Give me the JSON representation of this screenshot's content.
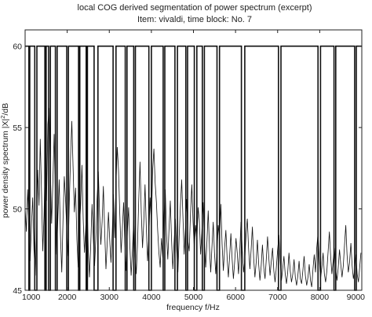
{
  "chart_data": {
    "type": "line",
    "title": "local COG derived segmentation of power spectrum (excerpt)",
    "subtitle": "Item: vivaldi, time block: No. 7",
    "xlabel": "frequency f/Hz",
    "ylabel_main": "power density spectrum |X|",
    "ylabel_sup": "2",
    "ylabel_tail": "/dB",
    "xlim": [
      1000,
      9000
    ],
    "ylim": [
      45,
      61
    ],
    "x_ticks": [
      1000,
      2000,
      3000,
      4000,
      5000,
      6000,
      7000,
      8000,
      9000
    ],
    "y_ticks": [
      45,
      50,
      55,
      60
    ],
    "x_tick_labels": [
      "1000",
      "2000",
      "3000",
      "4000",
      "5000",
      "6000",
      "7000",
      "8000",
      "9000"
    ],
    "y_tick_labels": [
      "45",
      "50",
      "55",
      "60"
    ],
    "grid": false,
    "legend": "none",
    "series": [
      {
        "role": "segmentation",
        "levels": [
          45,
          60
        ],
        "color": "#111111",
        "boundaries": [
          1000,
          1090,
          1110,
          1230,
          1280,
          1470,
          1500,
          1560,
          1600,
          1720,
          1760,
          1990,
          2030,
          2270,
          2300,
          2450,
          2480,
          2640,
          2730,
          3090,
          3160,
          3380,
          3420,
          3580,
          3620,
          3940,
          4000,
          4280,
          4320,
          4560,
          4620,
          4820,
          4860,
          5020,
          5080,
          5210,
          5260,
          5560,
          5620,
          6140,
          6220,
          7020,
          7080,
          7960,
          8020,
          8340,
          8380,
          8830,
          8870,
          9000
        ]
      },
      {
        "role": "spectrum",
        "color": "#111111",
        "x": [
          1000,
          1030,
          1060,
          1090,
          1120,
          1150,
          1180,
          1210,
          1240,
          1270,
          1300,
          1330,
          1360,
          1390,
          1420,
          1450,
          1480,
          1510,
          1540,
          1570,
          1600,
          1630,
          1660,
          1690,
          1720,
          1750,
          1780,
          1810,
          1840,
          1870,
          1900,
          1930,
          1960,
          1990,
          2020,
          2050,
          2080,
          2110,
          2140,
          2170,
          2200,
          2230,
          2260,
          2290,
          2320,
          2350,
          2380,
          2410,
          2440,
          2470,
          2500,
          2530,
          2560,
          2590,
          2620,
          2650,
          2680,
          2710,
          2740,
          2770,
          2800,
          2830,
          2860,
          2890,
          2920,
          2950,
          2980,
          3010,
          3040,
          3070,
          3100,
          3130,
          3160,
          3190,
          3220,
          3250,
          3280,
          3310,
          3340,
          3370,
          3400,
          3430,
          3460,
          3490,
          3520,
          3550,
          3580,
          3610,
          3640,
          3670,
          3700,
          3730,
          3760,
          3790,
          3820,
          3850,
          3880,
          3910,
          3940,
          3970,
          4000,
          4030,
          4060,
          4090,
          4120,
          4150,
          4180,
          4210,
          4240,
          4270,
          4300,
          4330,
          4360,
          4390,
          4420,
          4450,
          4480,
          4510,
          4540,
          4570,
          4600,
          4630,
          4660,
          4690,
          4720,
          4750,
          4780,
          4810,
          4840,
          4870,
          4900,
          4930,
          4960,
          4990,
          5020,
          5050,
          5080,
          5110,
          5140,
          5170,
          5200,
          5230,
          5260,
          5290,
          5320,
          5350,
          5380,
          5410,
          5440,
          5470,
          5500,
          5530,
          5560,
          5590,
          5620,
          5650,
          5680,
          5710,
          5740,
          5770,
          5800,
          5830,
          5860,
          5890,
          5920,
          5950,
          5980,
          6010,
          6040,
          6070,
          6100,
          6130,
          6160,
          6190,
          6220,
          6250,
          6280,
          6310,
          6340,
          6370,
          6400,
          6430,
          6460,
          6490,
          6520,
          6550,
          6580,
          6610,
          6640,
          6670,
          6700,
          6730,
          6760,
          6790,
          6820,
          6850,
          6880,
          6910,
          6940,
          6970,
          7000,
          7030,
          7060,
          7090,
          7120,
          7150,
          7180,
          7210,
          7240,
          7270,
          7300,
          7330,
          7360,
          7390,
          7420,
          7450,
          7480,
          7510,
          7540,
          7570,
          7600,
          7630,
          7660,
          7690,
          7720,
          7750,
          7780,
          7810,
          7840,
          7870,
          7900,
          7930,
          7960,
          7990,
          8020,
          8050,
          8080,
          8110,
          8140,
          8170,
          8200,
          8230,
          8260,
          8290,
          8320,
          8350,
          8380,
          8410,
          8440,
          8470,
          8500,
          8530,
          8560,
          8590,
          8620,
          8650,
          8680,
          8710,
          8740,
          8770,
          8800,
          8830,
          8860,
          8890,
          8920,
          8950,
          8980
        ],
        "y": [
          50.1,
          48.6,
          51.2,
          49.0,
          46.8,
          48.9,
          50.7,
          47.5,
          45.9,
          48.3,
          52.4,
          50.2,
          54.3,
          51.0,
          47.4,
          49.6,
          53.1,
          50.5,
          55.2,
          56.2,
          52.3,
          49.1,
          51.7,
          54.6,
          50.8,
          47.2,
          49.5,
          51.8,
          48.4,
          46.1,
          49.3,
          52.0,
          50.6,
          48.7,
          47.1,
          50.4,
          53.2,
          55.4,
          52.6,
          49.8,
          51.3,
          48.1,
          46.4,
          48.9,
          50.2,
          52.7,
          49.4,
          47.3,
          48.8,
          50.9,
          47.6,
          45.8,
          47.9,
          50.3,
          48.2,
          46.5,
          48.1,
          50.6,
          52.3,
          49.7,
          47.8,
          49.2,
          51.4,
          48.6,
          46.3,
          47.9,
          49.8,
          48.1,
          46.7,
          48.5,
          50.9,
          48.2,
          51.6,
          53.8,
          52.4,
          49.6,
          47.3,
          48.8,
          50.4,
          47.9,
          46.2,
          48.6,
          50.1,
          47.7,
          45.9,
          47.4,
          49.3,
          47.1,
          46.0,
          47.8,
          50.6,
          52.9,
          49.8,
          47.6,
          49.2,
          51.5,
          48.9,
          46.8,
          48.3,
          50.7,
          49.1,
          52.4,
          53.7,
          51.6,
          50.4,
          48.7,
          47.3,
          46.4,
          48.2,
          47.0,
          49.6,
          51.2,
          48.4,
          46.9,
          48.8,
          50.5,
          48.1,
          46.3,
          47.9,
          49.4,
          47.5,
          46.1,
          48.3,
          50.2,
          51.8,
          49.5,
          47.2,
          48.9,
          50.6,
          48.0,
          47.4,
          49.7,
          51.5,
          49.2,
          47.6,
          49.0,
          48.0,
          50.1,
          49.3,
          47.2,
          48.6,
          50.4,
          48.1,
          46.4,
          48.0,
          49.9,
          47.6,
          46.1,
          47.7,
          49.2,
          47.3,
          46.0,
          47.4,
          49.0,
          48.2,
          50.3,
          47.8,
          46.2,
          47.6,
          48.7,
          47.0,
          45.8,
          47.1,
          48.5,
          46.9,
          45.7,
          46.8,
          48.2,
          47.3,
          46.0,
          47.4,
          49.2,
          47.5,
          46.1,
          46.9,
          48.4,
          49.4,
          47.6,
          46.3,
          47.5,
          48.9,
          47.0,
          45.8,
          46.7,
          48.1,
          46.6,
          45.6,
          46.5,
          47.8,
          46.4,
          45.7,
          46.9,
          48.3,
          47.0,
          45.9,
          46.8,
          47.6,
          46.2,
          45.5,
          46.4,
          47.5,
          48.4,
          46.8,
          45.6,
          46.3,
          47.1,
          46.0,
          45.4,
          46.1,
          47.3,
          46.2,
          45.5,
          46.0,
          46.9,
          45.8,
          45.3,
          45.9,
          46.8,
          45.7,
          45.4,
          46.2,
          47.1,
          45.9,
          45.3,
          45.8,
          46.6,
          45.6,
          45.2,
          46.3,
          47.2,
          46.1,
          47.6,
          48.5,
          46.9,
          45.7,
          46.4,
          47.3,
          46.0,
          45.5,
          46.2,
          47.4,
          48.6,
          47.1,
          46.0,
          46.8,
          47.6,
          46.3,
          45.6,
          46.4,
          47.5,
          46.6,
          45.8,
          46.5,
          47.8,
          49.0,
          47.2,
          46.1,
          46.7,
          47.9,
          46.5,
          45.7,
          46.3,
          47.2,
          46.0,
          45.5,
          46.4,
          47.3
        ]
      }
    ]
  }
}
